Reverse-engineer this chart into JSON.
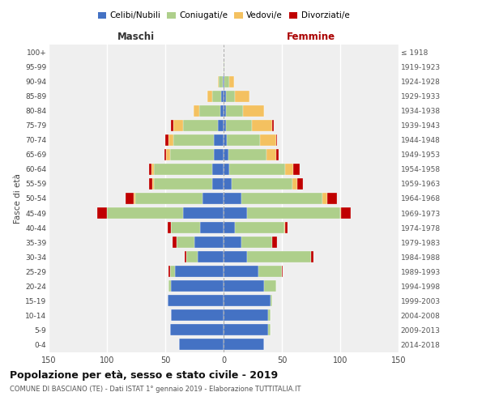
{
  "age_groups": [
    "0-4",
    "5-9",
    "10-14",
    "15-19",
    "20-24",
    "25-29",
    "30-34",
    "35-39",
    "40-44",
    "45-49",
    "50-54",
    "55-59",
    "60-64",
    "65-69",
    "70-74",
    "75-79",
    "80-84",
    "85-89",
    "90-94",
    "95-99",
    "100+"
  ],
  "birth_years": [
    "2014-2018",
    "2009-2013",
    "2004-2008",
    "1999-2003",
    "1994-1998",
    "1989-1993",
    "1984-1988",
    "1979-1983",
    "1974-1978",
    "1969-1973",
    "1964-1968",
    "1959-1963",
    "1954-1958",
    "1949-1953",
    "1944-1948",
    "1939-1943",
    "1934-1938",
    "1929-1933",
    "1924-1928",
    "1919-1923",
    "≤ 1918"
  ],
  "maschi": {
    "celibe": [
      38,
      46,
      45,
      48,
      45,
      42,
      22,
      25,
      20,
      35,
      18,
      10,
      10,
      8,
      8,
      5,
      3,
      2,
      1,
      0,
      0
    ],
    "coniugato": [
      0,
      0,
      0,
      0,
      2,
      4,
      10,
      15,
      25,
      65,
      58,
      50,
      50,
      38,
      35,
      30,
      18,
      8,
      3,
      0,
      0
    ],
    "vedovo": [
      0,
      0,
      0,
      0,
      0,
      0,
      0,
      0,
      0,
      0,
      1,
      1,
      2,
      3,
      4,
      8,
      5,
      4,
      1,
      0,
      0
    ],
    "divorziato": [
      0,
      0,
      0,
      0,
      0,
      1,
      1,
      4,
      3,
      8,
      7,
      3,
      2,
      2,
      3,
      2,
      0,
      0,
      0,
      0,
      0
    ]
  },
  "femmine": {
    "nubile": [
      35,
      38,
      38,
      40,
      35,
      30,
      20,
      15,
      10,
      20,
      15,
      7,
      5,
      4,
      3,
      2,
      2,
      2,
      1,
      0,
      0
    ],
    "coniugata": [
      0,
      2,
      2,
      2,
      10,
      20,
      55,
      27,
      42,
      80,
      70,
      52,
      48,
      33,
      28,
      22,
      15,
      8,
      4,
      1,
      0
    ],
    "vedova": [
      0,
      0,
      0,
      0,
      0,
      0,
      0,
      0,
      1,
      1,
      4,
      4,
      7,
      8,
      14,
      18,
      18,
      12,
      4,
      0,
      0
    ],
    "divorziata": [
      0,
      0,
      0,
      0,
      0,
      1,
      2,
      4,
      2,
      8,
      8,
      5,
      5,
      2,
      1,
      1,
      0,
      0,
      0,
      0,
      0
    ]
  },
  "colors": {
    "celibe": "#4472C4",
    "coniugato": "#AECF8B",
    "vedovo": "#F4C160",
    "divorziato": "#C00000"
  },
  "xlim": 150,
  "title": "Popolazione per età, sesso e stato civile - 2019",
  "subtitle": "COMUNE DI BASCIANO (TE) - Dati ISTAT 1° gennaio 2019 - Elaborazione TUTTITALIA.IT",
  "ylabel_left": "Fasce di età",
  "xlabel_maschi": "Maschi",
  "xlabel_femmine": "Femmine",
  "bg_color": "#efefef",
  "grid_color": "#ffffff",
  "legend_labels": [
    "Celibi/Nubili",
    "Coniugati/e",
    "Vedovi/e",
    "Divorziati/e"
  ]
}
